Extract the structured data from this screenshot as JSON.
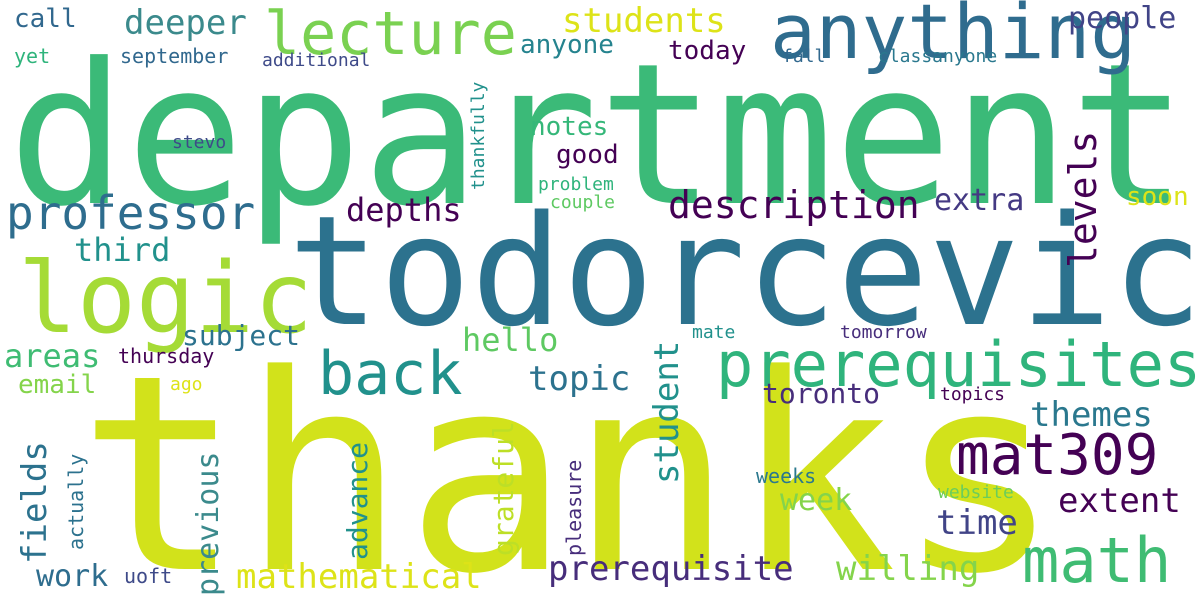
{
  "words": [
    {
      "text": "department",
      "color": "#3bba78"
    },
    {
      "text": "thanks",
      "color": "#d2e21b"
    },
    {
      "text": "todorcevic",
      "color": "#2c728e"
    },
    {
      "text": "anything",
      "color": "#2f6c8e"
    },
    {
      "text": "lecture",
      "color": "#7ad151"
    },
    {
      "text": "logic",
      "color": "#a5db36"
    },
    {
      "text": "prerequisites",
      "color": "#2fb47c"
    },
    {
      "text": "mat309",
      "color": "#440154"
    },
    {
      "text": "math",
      "color": "#3fbc73"
    },
    {
      "text": "professor",
      "color": "#2e6d8e"
    },
    {
      "text": "back",
      "color": "#21918c"
    },
    {
      "text": "description",
      "color": "#440154"
    },
    {
      "text": "students",
      "color": "#dde318"
    },
    {
      "text": "deeper",
      "color": "#3b8a8c"
    },
    {
      "text": "people",
      "color": "#414487"
    },
    {
      "text": "call",
      "color": "#31688e"
    },
    {
      "text": "anyone",
      "color": "#25838e"
    },
    {
      "text": "today",
      "color": "#440154"
    },
    {
      "text": "yet",
      "color": "#2fb47c"
    },
    {
      "text": "september",
      "color": "#31688e"
    },
    {
      "text": "additional",
      "color": "#3e4a89"
    },
    {
      "text": "fall",
      "color": "#31688e"
    },
    {
      "text": "classanyone",
      "color": "#2a788e"
    },
    {
      "text": "thankfully",
      "color": "#21918c"
    },
    {
      "text": "notes",
      "color": "#35b779"
    },
    {
      "text": "stevo",
      "color": "#3e4a89"
    },
    {
      "text": "good",
      "color": "#440154"
    },
    {
      "text": "problem",
      "color": "#2fb47c"
    },
    {
      "text": "couple",
      "color": "#5ec962"
    },
    {
      "text": "depths",
      "color": "#440154"
    },
    {
      "text": "extra",
      "color": "#443983"
    },
    {
      "text": "soon",
      "color": "#dde318"
    },
    {
      "text": "levels",
      "color": "#440154"
    },
    {
      "text": "third",
      "color": "#21918c"
    },
    {
      "text": "subject",
      "color": "#2c728e"
    },
    {
      "text": "hello",
      "color": "#5ec962"
    },
    {
      "text": "mate",
      "color": "#21918c"
    },
    {
      "text": "tomorrow",
      "color": "#472d7b"
    },
    {
      "text": "areas",
      "color": "#3fbc73"
    },
    {
      "text": "thursday",
      "color": "#440154"
    },
    {
      "text": "email",
      "color": "#84d44b"
    },
    {
      "text": "ago",
      "color": "#dde318"
    },
    {
      "text": "topic",
      "color": "#2c728e"
    },
    {
      "text": "toronto",
      "color": "#472d7b"
    },
    {
      "text": "topics",
      "color": "#440154"
    },
    {
      "text": "themes",
      "color": "#2a788e"
    },
    {
      "text": "student",
      "color": "#21918c"
    },
    {
      "text": "fields",
      "color": "#2c728e"
    },
    {
      "text": "actually",
      "color": "#2c728e"
    },
    {
      "text": "previous",
      "color": "#3b8a8c"
    },
    {
      "text": "advance",
      "color": "#21918c"
    },
    {
      "text": "grateful",
      "color": "#bddf26"
    },
    {
      "text": "pleasure",
      "color": "#472d7b"
    },
    {
      "text": "weeks",
      "color": "#2a788e"
    },
    {
      "text": "week",
      "color": "#84d44b"
    },
    {
      "text": "time",
      "color": "#414487"
    },
    {
      "text": "extent",
      "color": "#440154"
    },
    {
      "text": "website",
      "color": "#6ccd5a"
    },
    {
      "text": "work",
      "color": "#2e6d8e"
    },
    {
      "text": "uoft",
      "color": "#3e4a89"
    },
    {
      "text": "mathematical",
      "color": "#dde318"
    },
    {
      "text": "prerequisite",
      "color": "#472d7b"
    },
    {
      "text": "willing",
      "color": "#84d44b"
    }
  ]
}
